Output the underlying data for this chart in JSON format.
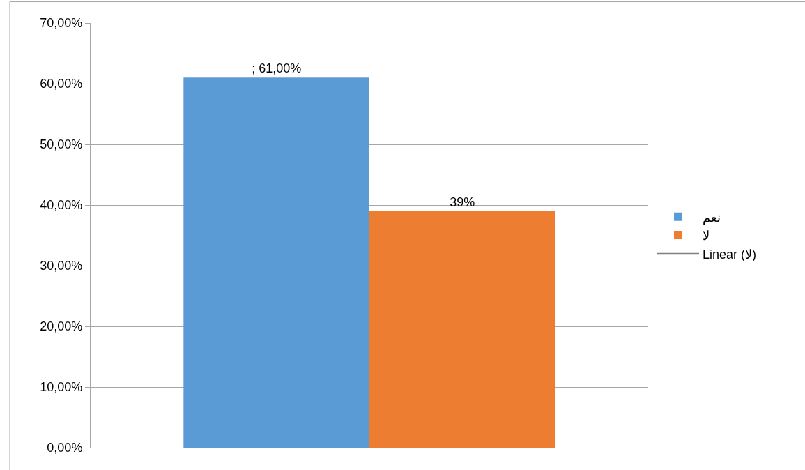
{
  "chart_data": {
    "type": "bar",
    "categories": [
      null
    ],
    "series": [
      {
        "name": "نعم",
        "color": "#5b9bd5",
        "values": [
          61
        ],
        "value_labels": [
          "; 61,00%"
        ]
      },
      {
        "name": "لا",
        "color": "#ed7d31",
        "values": [
          39
        ],
        "value_labels": [
          "39%"
        ]
      },
      {
        "name": "Linear (لا)",
        "type": "line",
        "color": "#808080",
        "values": [
          null
        ]
      }
    ],
    "ylim": [
      0,
      70
    ],
    "yticks": [
      {
        "value": 0,
        "label": "0,00%"
      },
      {
        "value": 10,
        "label": "10,00%"
      },
      {
        "value": 20,
        "label": "20,00%"
      },
      {
        "value": 30,
        "label": "30,00%"
      },
      {
        "value": 40,
        "label": "40,00%"
      },
      {
        "value": 50,
        "label": "50,00%"
      },
      {
        "value": 60,
        "label": "60,00%"
      },
      {
        "value": 70,
        "label": "70,00%"
      }
    ],
    "grid": "y",
    "legend": "right"
  }
}
